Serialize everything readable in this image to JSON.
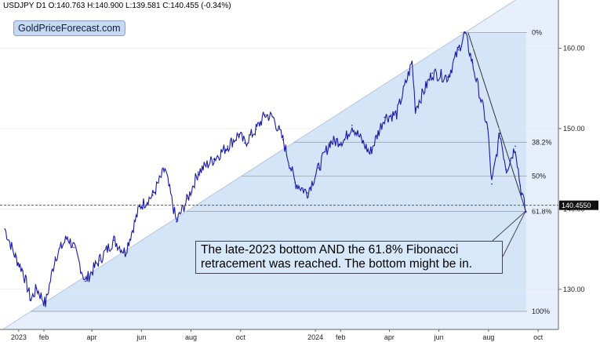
{
  "header": {
    "text": "USDJPY  D1  O:140.763  H:140.900  L:139.581  C:140.455  (-0.34%)"
  },
  "logo": {
    "text": "GoldPriceForecast.com"
  },
  "annotation": {
    "text": "The late-2023 bottom AND the 61.8% Fibonacci retracement was reached. The bottom might be in."
  },
  "colors": {
    "price": "#1a1aa8",
    "fib_fill": "#cfe1f7",
    "wedge_fill": "#e6effb",
    "grid": "#e6e6e6"
  },
  "chart_data": {
    "type": "line",
    "symbol": "USDJPY",
    "timeframe": "D1",
    "ohlc_last": {
      "open": 140.763,
      "high": 140.9,
      "low": 139.581,
      "close": 140.455,
      "change_pct": -0.34
    },
    "x_ticks": [
      "2023",
      "feb",
      "apr",
      "jun",
      "aug",
      "oct",
      "2024",
      "feb",
      "apr",
      "jun",
      "aug",
      "oct"
    ],
    "y_ticks": [
      130.0,
      140.0,
      150.0,
      160.0
    ],
    "y_tick_labels": [
      "130.00",
      "140.00",
      "150.00",
      "160.00"
    ],
    "ylim": [
      125.0,
      166.0
    ],
    "current_price": 140.455,
    "current_price_label": "140.4550",
    "fib_levels": [
      {
        "label": "0%",
        "value": 161.95
      },
      {
        "label": "38.2%",
        "value": 148.3
      },
      {
        "label": "50%",
        "value": 144.1
      },
      {
        "label": "61.8%",
        "value": 139.7
      },
      {
        "label": "100%",
        "value": 127.25
      }
    ],
    "series": [
      {
        "x": [
          "2022-12-15",
          "2022-12-28",
          "2023-01-06",
          "2023-01-16",
          "2023-01-23",
          "2023-02-03",
          "2023-02-15",
          "2023-03-02",
          "2023-03-10",
          "2023-03-24",
          "2023-04-10",
          "2023-04-28",
          "2023-05-12",
          "2023-05-30",
          "2023-06-15",
          "2023-06-30",
          "2023-07-14",
          "2023-07-28",
          "2023-08-10",
          "2023-08-29",
          "2023-09-15",
          "2023-09-29",
          "2023-10-06",
          "2023-10-20",
          "2023-10-31",
          "2023-11-10",
          "2023-11-22",
          "2023-12-07",
          "2023-12-22",
          "2024-01-05",
          "2024-01-19",
          "2024-02-06",
          "2024-02-15",
          "2024-03-08",
          "2024-03-26",
          "2024-04-10",
          "2024-04-29",
          "2024-05-03",
          "2024-05-24",
          "2024-06-12",
          "2024-06-25",
          "2024-07-03",
          "2024-07-12",
          "2024-07-31",
          "2024-08-05",
          "2024-08-15",
          "2024-08-23",
          "2024-09-03",
          "2024-09-09",
          "2024-09-16"
        ],
        "values": [
          137.5,
          134.0,
          132.3,
          128.7,
          130.1,
          128.2,
          134.0,
          136.5,
          135.2,
          131.0,
          133.6,
          136.1,
          134.6,
          140.3,
          141.7,
          145.0,
          138.4,
          141.3,
          144.6,
          146.2,
          147.8,
          149.3,
          148.2,
          149.9,
          151.7,
          151.4,
          148.6,
          143.3,
          142.0,
          145.1,
          148.3,
          148.6,
          150.4,
          146.9,
          151.4,
          151.8,
          158.3,
          152.5,
          156.9,
          156.4,
          159.8,
          161.9,
          158.2,
          150.0,
          143.1,
          149.4,
          144.9,
          147.8,
          142.9,
          139.6
        ]
      }
    ]
  }
}
